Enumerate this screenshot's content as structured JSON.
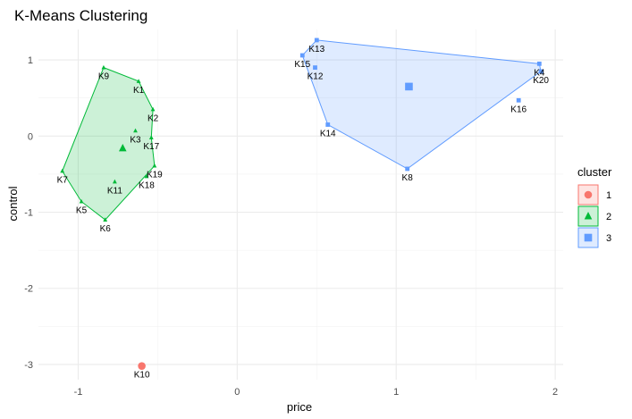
{
  "chart_data": {
    "type": "scatter",
    "title": "K-Means Clustering",
    "xlabel": "price",
    "ylabel": "control",
    "xlim": [
      -1.25,
      2.05
    ],
    "ylim": [
      -3.2,
      1.4
    ],
    "x_ticks": [
      -1,
      0,
      1,
      2
    ],
    "x_tick_labels": [
      "-1",
      "0",
      "1",
      "2"
    ],
    "y_ticks": [
      -3,
      -2,
      -1,
      0,
      1
    ],
    "y_tick_labels": [
      "-3",
      "-2",
      "-1",
      "0",
      "1"
    ],
    "grid": true,
    "legend": {
      "title": "cluster",
      "position": "right",
      "entries": [
        "1",
        "2",
        "3"
      ]
    },
    "colors": {
      "1": "#F8766D",
      "2": "#00BA38",
      "3": "#619CFF"
    },
    "shapes": {
      "1": "circle",
      "2": "triangle",
      "3": "square"
    },
    "points": [
      {
        "label": "K1",
        "x": -0.62,
        "y": 0.72,
        "cluster": "2"
      },
      {
        "label": "K2",
        "x": -0.53,
        "y": 0.35,
        "cluster": "2"
      },
      {
        "label": "K3",
        "x": -0.64,
        "y": 0.07,
        "cluster": "2"
      },
      {
        "label": "K4",
        "x": 1.9,
        "y": 0.95,
        "cluster": "3"
      },
      {
        "label": "K5",
        "x": -0.98,
        "y": -0.86,
        "cluster": "2"
      },
      {
        "label": "K6",
        "x": -0.83,
        "y": -1.1,
        "cluster": "2"
      },
      {
        "label": "K7",
        "x": -1.1,
        "y": -0.46,
        "cluster": "2"
      },
      {
        "label": "K8",
        "x": 1.07,
        "y": -0.43,
        "cluster": "3"
      },
      {
        "label": "K9",
        "x": -0.84,
        "y": 0.9,
        "cluster": "2"
      },
      {
        "label": "K10",
        "x": -0.6,
        "y": -3.02,
        "cluster": "1"
      },
      {
        "label": "K11",
        "x": -0.77,
        "y": -0.6,
        "cluster": "2"
      },
      {
        "label": "K12",
        "x": 0.49,
        "y": 0.9,
        "cluster": "3"
      },
      {
        "label": "K13",
        "x": 0.5,
        "y": 1.26,
        "cluster": "3"
      },
      {
        "label": "K14",
        "x": 0.57,
        "y": 0.15,
        "cluster": "3"
      },
      {
        "label": "K15",
        "x": 0.41,
        "y": 1.06,
        "cluster": "3"
      },
      {
        "label": "K16",
        "x": 1.77,
        "y": 0.47,
        "cluster": "3"
      },
      {
        "label": "K17",
        "x": -0.54,
        "y": -0.02,
        "cluster": "2"
      },
      {
        "label": "K18",
        "x": -0.57,
        "y": -0.53,
        "cluster": "2"
      },
      {
        "label": "K19",
        "x": -0.52,
        "y": -0.39,
        "cluster": "2"
      },
      {
        "label": "K20",
        "x": 1.91,
        "y": 0.85,
        "cluster": "3"
      }
    ],
    "centroids": [
      {
        "cluster": "1",
        "x": -0.6,
        "y": -3.02
      },
      {
        "cluster": "2",
        "x": -0.72,
        "y": -0.16
      },
      {
        "cluster": "3",
        "x": 1.08,
        "y": 0.65
      }
    ],
    "hulls": [
      {
        "cluster": "2",
        "labels": [
          "K9",
          "K1",
          "K2",
          "K17",
          "K19",
          "K6",
          "K5",
          "K7"
        ]
      },
      {
        "cluster": "3",
        "labels": [
          "K13",
          "K4",
          "K20",
          "K8",
          "K14",
          "K15"
        ]
      }
    ]
  }
}
